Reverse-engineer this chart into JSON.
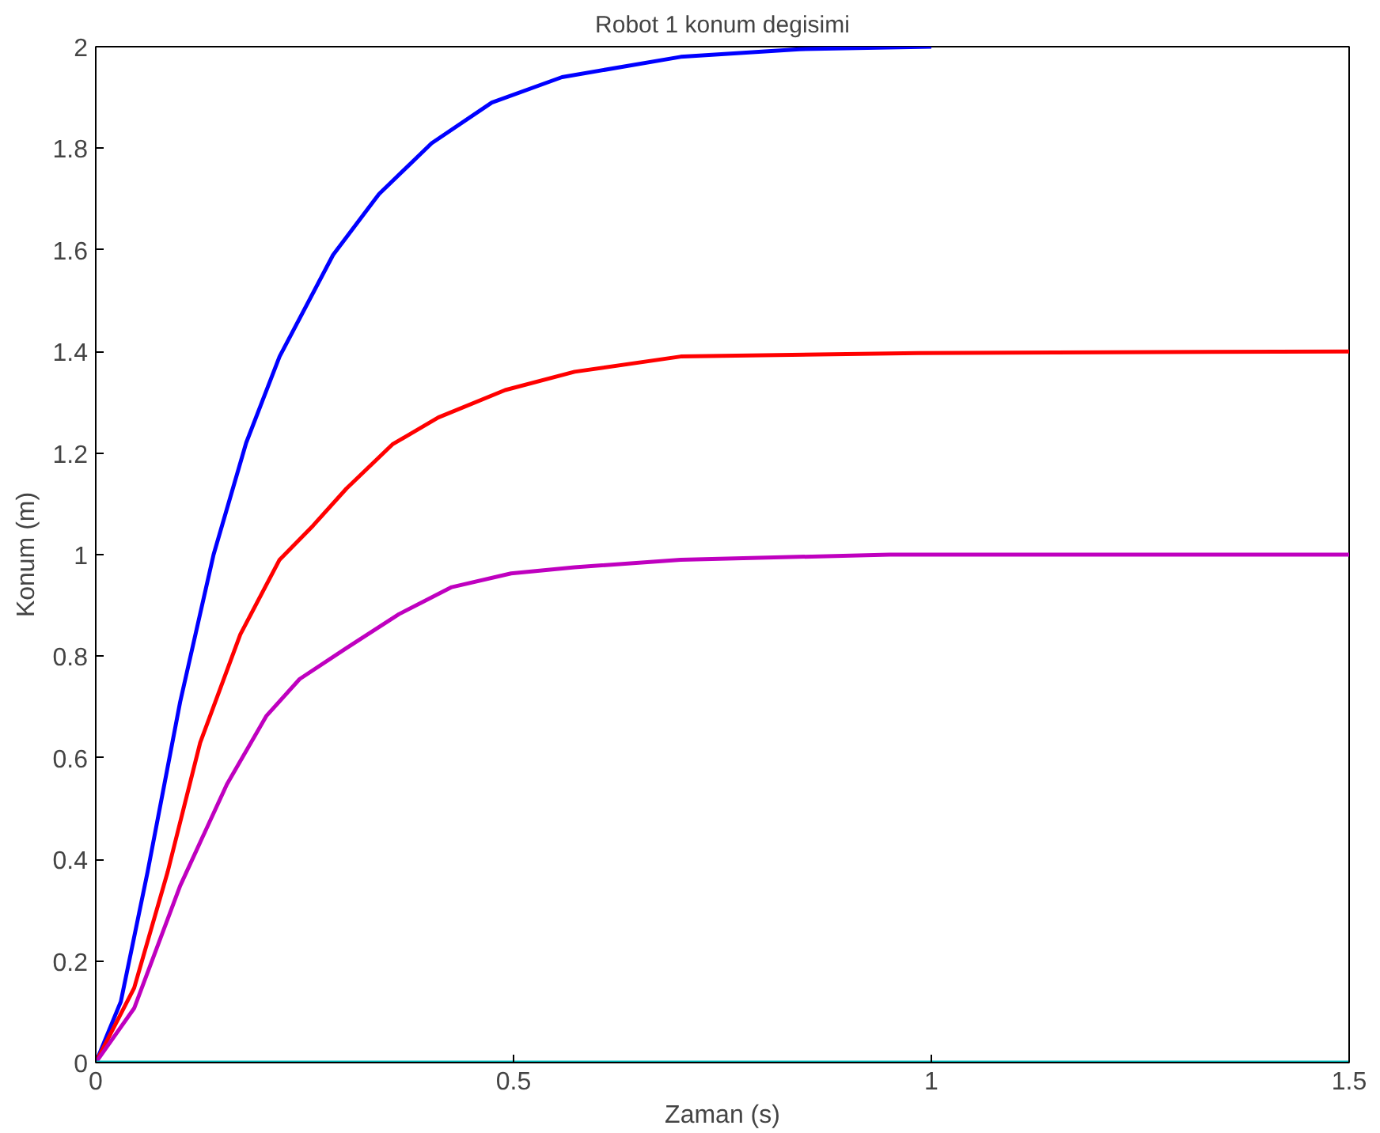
{
  "chart_data": {
    "type": "line",
    "title": "Robot 1 konum degisimi",
    "xlabel": "Zaman (s)",
    "ylabel": "Konum (m)",
    "xlim": [
      0,
      1.5
    ],
    "ylim": [
      0,
      2
    ],
    "xticks": [
      0,
      0.5,
      1,
      1.5
    ],
    "yticks": [
      0,
      0.2,
      0.4,
      0.6,
      0.8,
      1,
      1.2,
      1.4,
      1.6,
      1.8,
      2
    ],
    "grid": false,
    "marker": "none",
    "line_style": "solid",
    "series": [
      {
        "color": "#0000ff",
        "x": [
          0,
          0.03,
          0.062,
          0.101,
          0.141,
          0.18,
          0.22,
          0.284,
          0.339,
          0.402,
          0.474,
          0.558,
          0.7,
          0.842,
          1.0
        ],
        "values": [
          0,
          0.12,
          0.375,
          0.71,
          1.0,
          1.22,
          1.39,
          1.59,
          1.71,
          1.81,
          1.89,
          1.94,
          1.98,
          1.995,
          2.0
        ]
      },
      {
        "color": "#ff0000",
        "x": [
          0,
          0.046,
          0.086,
          0.125,
          0.173,
          0.22,
          0.26,
          0.3,
          0.355,
          0.41,
          0.49,
          0.573,
          0.7,
          0.984,
          1.5
        ],
        "values": [
          0,
          0.147,
          0.375,
          0.63,
          0.843,
          0.99,
          1.057,
          1.13,
          1.217,
          1.27,
          1.324,
          1.36,
          1.39,
          1.397,
          1.4
        ]
      },
      {
        "color": "#bf00bf",
        "x": [
          0,
          0.046,
          0.101,
          0.157,
          0.204,
          0.244,
          0.3,
          0.363,
          0.426,
          0.497,
          0.573,
          0.7,
          0.95,
          1.5
        ],
        "values": [
          0,
          0.107,
          0.348,
          0.548,
          0.682,
          0.755,
          0.816,
          0.883,
          0.936,
          0.963,
          0.975,
          0.99,
          1.0,
          1.0
        ]
      },
      {
        "color": "#00bfbf",
        "x": [
          0,
          1.5
        ],
        "values": [
          0,
          0
        ]
      }
    ]
  }
}
